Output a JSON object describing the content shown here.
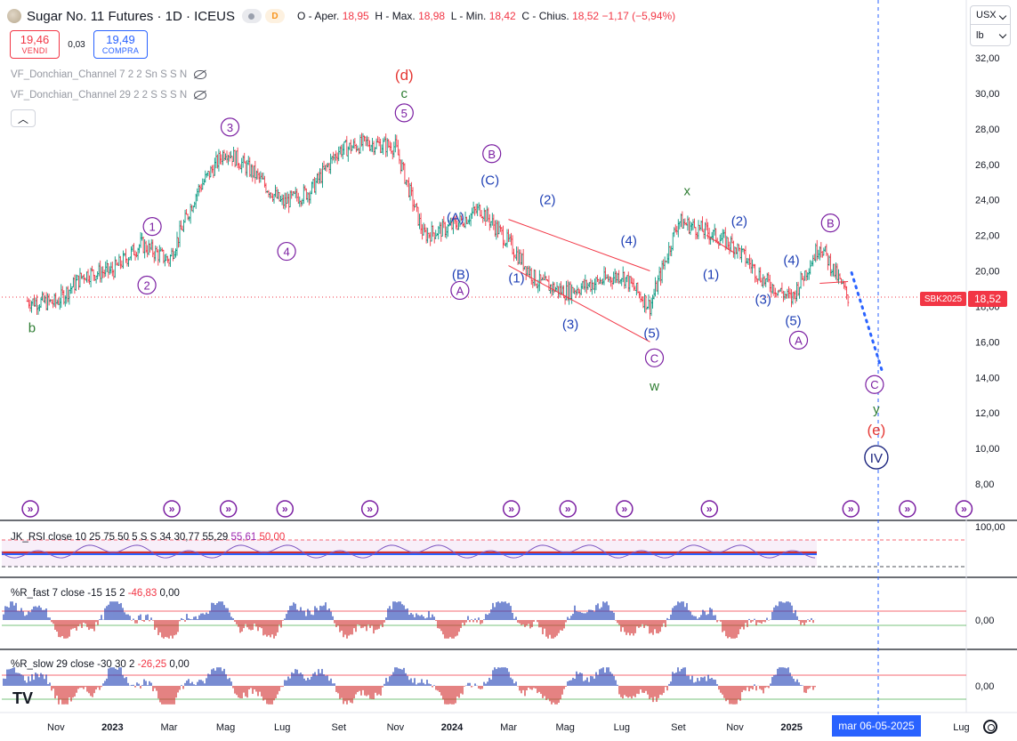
{
  "header": {
    "title": "Sugar No. 11 Futures · 1D · ICEUS",
    "badge_d": "D",
    "ohlc_prefix": "O - Aper.",
    "open": "18,95",
    "high_label": "H - Max.",
    "high": "18,98",
    "low_label": "L - Min.",
    "low": "18,42",
    "close_label": "C - Chius.",
    "close": "18,52",
    "change": "−1,17 (−5,94%)"
  },
  "trade": {
    "sell_price": "19,46",
    "sell_label": "VENDI",
    "spread": "0,03",
    "buy_price": "19,49",
    "buy_label": "COMPRA"
  },
  "indicators": {
    "donchian1": "VF_Donchian_Channel 7 2 2 Sn S S N",
    "donchian2": "VF_Donchian_Channel 29 2 2 S S S N",
    "collapse_icon": "chevron-up-icon"
  },
  "scale": {
    "currency": "USX",
    "unit": "lb"
  },
  "price_axis": {
    "ticks": [
      "32,00",
      "30,00",
      "28,00",
      "26,00",
      "24,00",
      "22,00",
      "20,00",
      "18,00",
      "16,00",
      "14,00",
      "12,00",
      "10,00",
      "8,00"
    ],
    "last_price": "18,52",
    "ticker_label": "SBK2025"
  },
  "time_axis": {
    "labels": [
      "Nov",
      "2023",
      "Mar",
      "Mag",
      "Lug",
      "Set",
      "Nov",
      "2024",
      "Mar",
      "Mag",
      "Lug",
      "Set",
      "Nov",
      "2025",
      "Mar",
      "Lug"
    ],
    "crosshair_date": "mar 06-05-2025"
  },
  "rsi_pane": {
    "legend_name": "JK_RSI close 10 25 75 50 5 S S 34",
    "values": [
      "30,77",
      "55,29",
      "55,61",
      "50,00"
    ],
    "axis_label": "100,00"
  },
  "r_fast_pane": {
    "legend_name": "%R_fast 7 close -15 15 2",
    "values": [
      "-46,83",
      "0,00"
    ],
    "axis_label": "0,00"
  },
  "r_slow_pane": {
    "legend_name": "%R_slow 29 close -30 30 2",
    "values": [
      "-26,25",
      "0,00"
    ],
    "axis_label": "0,00"
  },
  "watermark": "TV",
  "colors": {
    "up": "#089981",
    "down": "#f23645",
    "blue": "#2962ff",
    "purple": "#7b1fa2",
    "green": "#2e7d32",
    "navy": "#1a237e"
  },
  "chart_data": {
    "type": "candlestick",
    "title": "Sugar No. 11 Futures · 1D · ICEUS",
    "xlabel": "",
    "ylabel": "",
    "ylim": [
      7,
      33
    ],
    "x_range": [
      "2022-10",
      "2025-08"
    ],
    "grid": false,
    "price_path": {
      "x": [
        "2022-10",
        "2022-11",
        "2022-12",
        "2023-01",
        "2023-02",
        "2023-03",
        "2023-04",
        "2023-05",
        "2023-06",
        "2023-07",
        "2023-08",
        "2023-09",
        "2023-10",
        "2023-11",
        "2023-12",
        "2024-01",
        "2024-02",
        "2024-03",
        "2024-04",
        "2024-05",
        "2024-06",
        "2024-07",
        "2024-08",
        "2024-09",
        "2024-10",
        "2024-11",
        "2024-12",
        "2025-01",
        "2025-02",
        "2025-03"
      ],
      "y": [
        18.3,
        18.2,
        19.8,
        20.0,
        21.5,
        20.6,
        24.5,
        26.8,
        25.5,
        23.8,
        24.5,
        26.8,
        27.2,
        27.0,
        22.0,
        22.5,
        23.5,
        21.6,
        19.4,
        18.8,
        19.3,
        19.8,
        18.0,
        22.8,
        22.2,
        21.4,
        19.5,
        18.4,
        21.5,
        18.5
      ]
    },
    "last_close": 18.52,
    "projection": {
      "from": 19.9,
      "to": 14.4,
      "style": "dotted"
    },
    "wave_labels": [
      {
        "text": "b",
        "color": "green"
      },
      {
        "text": "1",
        "style": "circle-purple"
      },
      {
        "text": "2",
        "style": "circle-purple"
      },
      {
        "text": "3",
        "style": "circle-purple"
      },
      {
        "text": "4",
        "style": "circle-purple"
      },
      {
        "text": "5",
        "style": "circle-purple"
      },
      {
        "text": "(d)",
        "color": "red"
      },
      {
        "text": "c",
        "color": "green"
      },
      {
        "text": "(A)",
        "color": "blue"
      },
      {
        "text": "(B)",
        "color": "blue"
      },
      {
        "text": "(C)",
        "color": "blue"
      },
      {
        "text": "A",
        "style": "circle-purple"
      },
      {
        "text": "B",
        "style": "circle-purple"
      },
      {
        "text": "(1)",
        "color": "blue"
      },
      {
        "text": "(2)",
        "color": "blue"
      },
      {
        "text": "(3)",
        "color": "blue"
      },
      {
        "text": "(4)",
        "color": "blue"
      },
      {
        "text": "(5)",
        "color": "blue"
      },
      {
        "text": "C",
        "style": "circle-purple"
      },
      {
        "text": "w",
        "color": "green"
      },
      {
        "text": "x",
        "color": "green"
      },
      {
        "text": "(1)",
        "color": "blue"
      },
      {
        "text": "(2)",
        "color": "blue"
      },
      {
        "text": "(3)",
        "color": "blue"
      },
      {
        "text": "(4)",
        "color": "blue"
      },
      {
        "text": "(5)",
        "color": "blue"
      },
      {
        "text": "A",
        "style": "circle-purple"
      },
      {
        "text": "B",
        "style": "circle-purple"
      },
      {
        "text": "C",
        "style": "circle-purple"
      },
      {
        "text": "y",
        "color": "green"
      },
      {
        "text": "(e)",
        "color": "red"
      },
      {
        "text": "IV",
        "style": "circle-navy"
      }
    ]
  }
}
